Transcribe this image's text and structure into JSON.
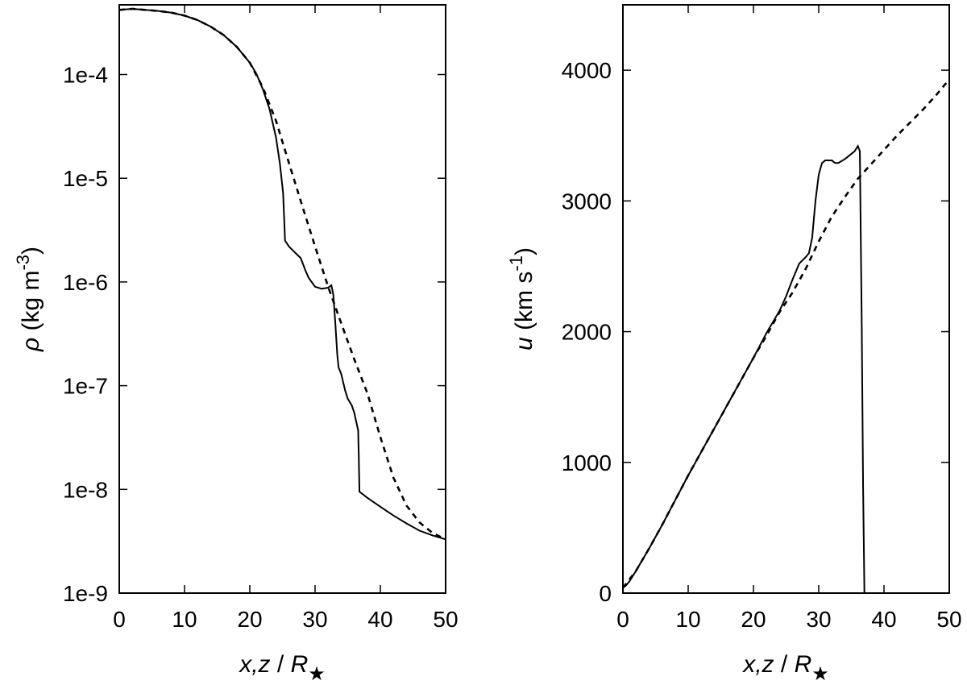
{
  "chart_data": [
    {
      "type": "line",
      "ylabel": {
        "symbol": "ρ",
        "unit_prefix": " (kg m",
        "unit_exp": "-3",
        "unit_suffix": ")"
      },
      "xlabel": {
        "symbol": "x,z",
        "sep": " / ",
        "r": "R",
        "sub": "★"
      },
      "xlim": [
        0,
        50
      ],
      "ylim": [
        1e-09,
        0.00047
      ],
      "yscale": "log",
      "xticks": [
        0,
        10,
        20,
        30,
        40,
        50
      ],
      "xtick_labels": [
        "0",
        "10",
        "20",
        "30",
        "40",
        "50"
      ],
      "yticks": [
        1e-09,
        1e-08,
        1e-07,
        1e-06,
        1e-05,
        0.0001
      ],
      "ytick_labels": [
        "1e-9",
        "1e-8",
        "1e-7",
        "1e-6",
        "1e-5",
        "1e-4"
      ],
      "grid": false,
      "legend": "none",
      "series": [
        {
          "style": "solid",
          "x": [
            0,
            2,
            4,
            6,
            8,
            10,
            12,
            14,
            16,
            18,
            20,
            21,
            22,
            23,
            24,
            24.6,
            25.1,
            25.4,
            26,
            27,
            27.8,
            28.5,
            29,
            30,
            31,
            32,
            32.5,
            32.8,
            33.1,
            33.4,
            33.6,
            34,
            34.6,
            35,
            35.6,
            36,
            36.6,
            36.7,
            36.8,
            38,
            40,
            42,
            44,
            46,
            48,
            50
          ],
          "y": [
            0.00042,
            0.00043,
            0.00042,
            0.00041,
            0.000395,
            0.00037,
            0.000335,
            0.00029,
            0.00024,
            0.000185,
            0.00013,
            0.000102,
            7.2e-05,
            4.7e-05,
            2.5e-05,
            1.4e-05,
            7.2e-06,
            2.5e-06,
            2.2e-06,
            1.9e-06,
            1.7e-06,
            1.3e-06,
            1.1e-06,
            9e-07,
            8.6e-07,
            8.8e-07,
            9.3e-07,
            7.5e-07,
            4e-07,
            2e-07,
            1.5e-07,
            1.3e-07,
            9e-08,
            7.5e-08,
            6.5e-08,
            5.5e-08,
            3.7e-08,
            2e-08,
            9.5e-09,
            8.3e-09,
            6.8e-09,
            5.6e-09,
            4.7e-09,
            4e-09,
            3.6e-09,
            3.3e-09
          ]
        },
        {
          "style": "dashed",
          "x": [
            0,
            2,
            4,
            6,
            8,
            10,
            12,
            14,
            16,
            18,
            20,
            22,
            24,
            26,
            28,
            30,
            32,
            34,
            36,
            38,
            40,
            42,
            44,
            46,
            48,
            50
          ],
          "y": [
            0.00042,
            0.00043,
            0.00042,
            0.00041,
            0.000395,
            0.00037,
            0.000335,
            0.00029,
            0.00024,
            0.000185,
            0.00013,
            7.5e-05,
            3.6e-05,
            1.4e-05,
            5.5e-06,
            2.2e-06,
            9e-07,
            4e-07,
            1.8e-07,
            8.5e-08,
            3.2e-08,
            1.3e-08,
            7e-09,
            4.8e-09,
            3.8e-09,
            3.3e-09
          ]
        }
      ]
    },
    {
      "type": "line",
      "ylabel": {
        "symbol": "u",
        "unit_prefix": " (km s",
        "unit_exp": "-1",
        "unit_suffix": ")"
      },
      "xlabel": {
        "symbol": "x,z",
        "sep": " / ",
        "r": "R",
        "sub": "★"
      },
      "xlim": [
        0,
        50
      ],
      "ylim": [
        0,
        4500
      ],
      "yscale": "linear",
      "xticks": [
        0,
        10,
        20,
        30,
        40,
        50
      ],
      "xtick_labels": [
        "0",
        "10",
        "20",
        "30",
        "40",
        "50"
      ],
      "yticks": [
        0,
        1000,
        2000,
        3000,
        4000
      ],
      "ytick_labels": [
        "0",
        "1000",
        "2000",
        "3000",
        "4000"
      ],
      "grid": false,
      "legend": "none",
      "series": [
        {
          "style": "solid",
          "x": [
            0,
            0.5,
            1,
            2,
            4,
            6,
            8,
            10,
            12,
            14,
            16,
            18,
            20,
            22,
            24,
            25,
            26,
            27,
            28,
            28.5,
            29,
            29.5,
            30,
            30.5,
            31,
            32,
            32.5,
            33,
            34,
            35,
            35.5,
            36,
            36.3,
            36.6,
            36.8,
            37,
            38,
            40,
            42,
            45,
            48,
            50
          ],
          "y": [
            40,
            60,
            90,
            170,
            340,
            520,
            710,
            900,
            1080,
            1260,
            1440,
            1620,
            1800,
            1990,
            2160,
            2270,
            2400,
            2520,
            2570,
            2600,
            2720,
            3000,
            3200,
            3290,
            3310,
            3310,
            3290,
            3290,
            3320,
            3360,
            3380,
            3420,
            3380,
            2000,
            800,
            0,
            0,
            0,
            0,
            0,
            0,
            0
          ]
        },
        {
          "style": "dashed",
          "x": [
            0,
            2,
            4,
            6,
            8,
            10,
            12,
            14,
            16,
            18,
            20,
            22,
            24,
            26,
            28,
            30,
            32,
            34,
            36,
            38,
            40,
            42,
            44,
            46,
            48,
            50
          ],
          "y": [
            40,
            170,
            340,
            520,
            710,
            900,
            1080,
            1260,
            1440,
            1620,
            1800,
            1970,
            2150,
            2300,
            2480,
            2690,
            2880,
            3030,
            3170,
            3280,
            3390,
            3500,
            3600,
            3700,
            3810,
            3930
          ]
        }
      ]
    }
  ]
}
